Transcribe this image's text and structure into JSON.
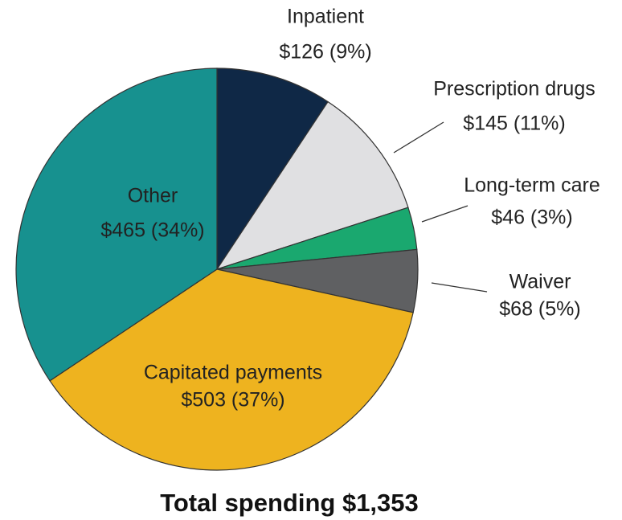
{
  "chart_data": {
    "type": "pie",
    "title": "Total spending $1,353",
    "categories": [
      "Inpatient",
      "Prescription drugs",
      "Long-term care",
      "Waiver",
      "Capitated payments",
      "Other"
    ],
    "values": [
      126,
      145,
      46,
      68,
      503,
      465
    ],
    "value_labels": [
      "$126 (9%)",
      "$145 (11%)",
      "$46 (3%)",
      "$68 (5%)",
      "$503 (37%)",
      "$465 (34%)"
    ],
    "colors": [
      "#0f2846",
      "#e0e0e2",
      "#1aa86f",
      "#5f6062",
      "#eeb31f",
      "#17918f"
    ]
  }
}
